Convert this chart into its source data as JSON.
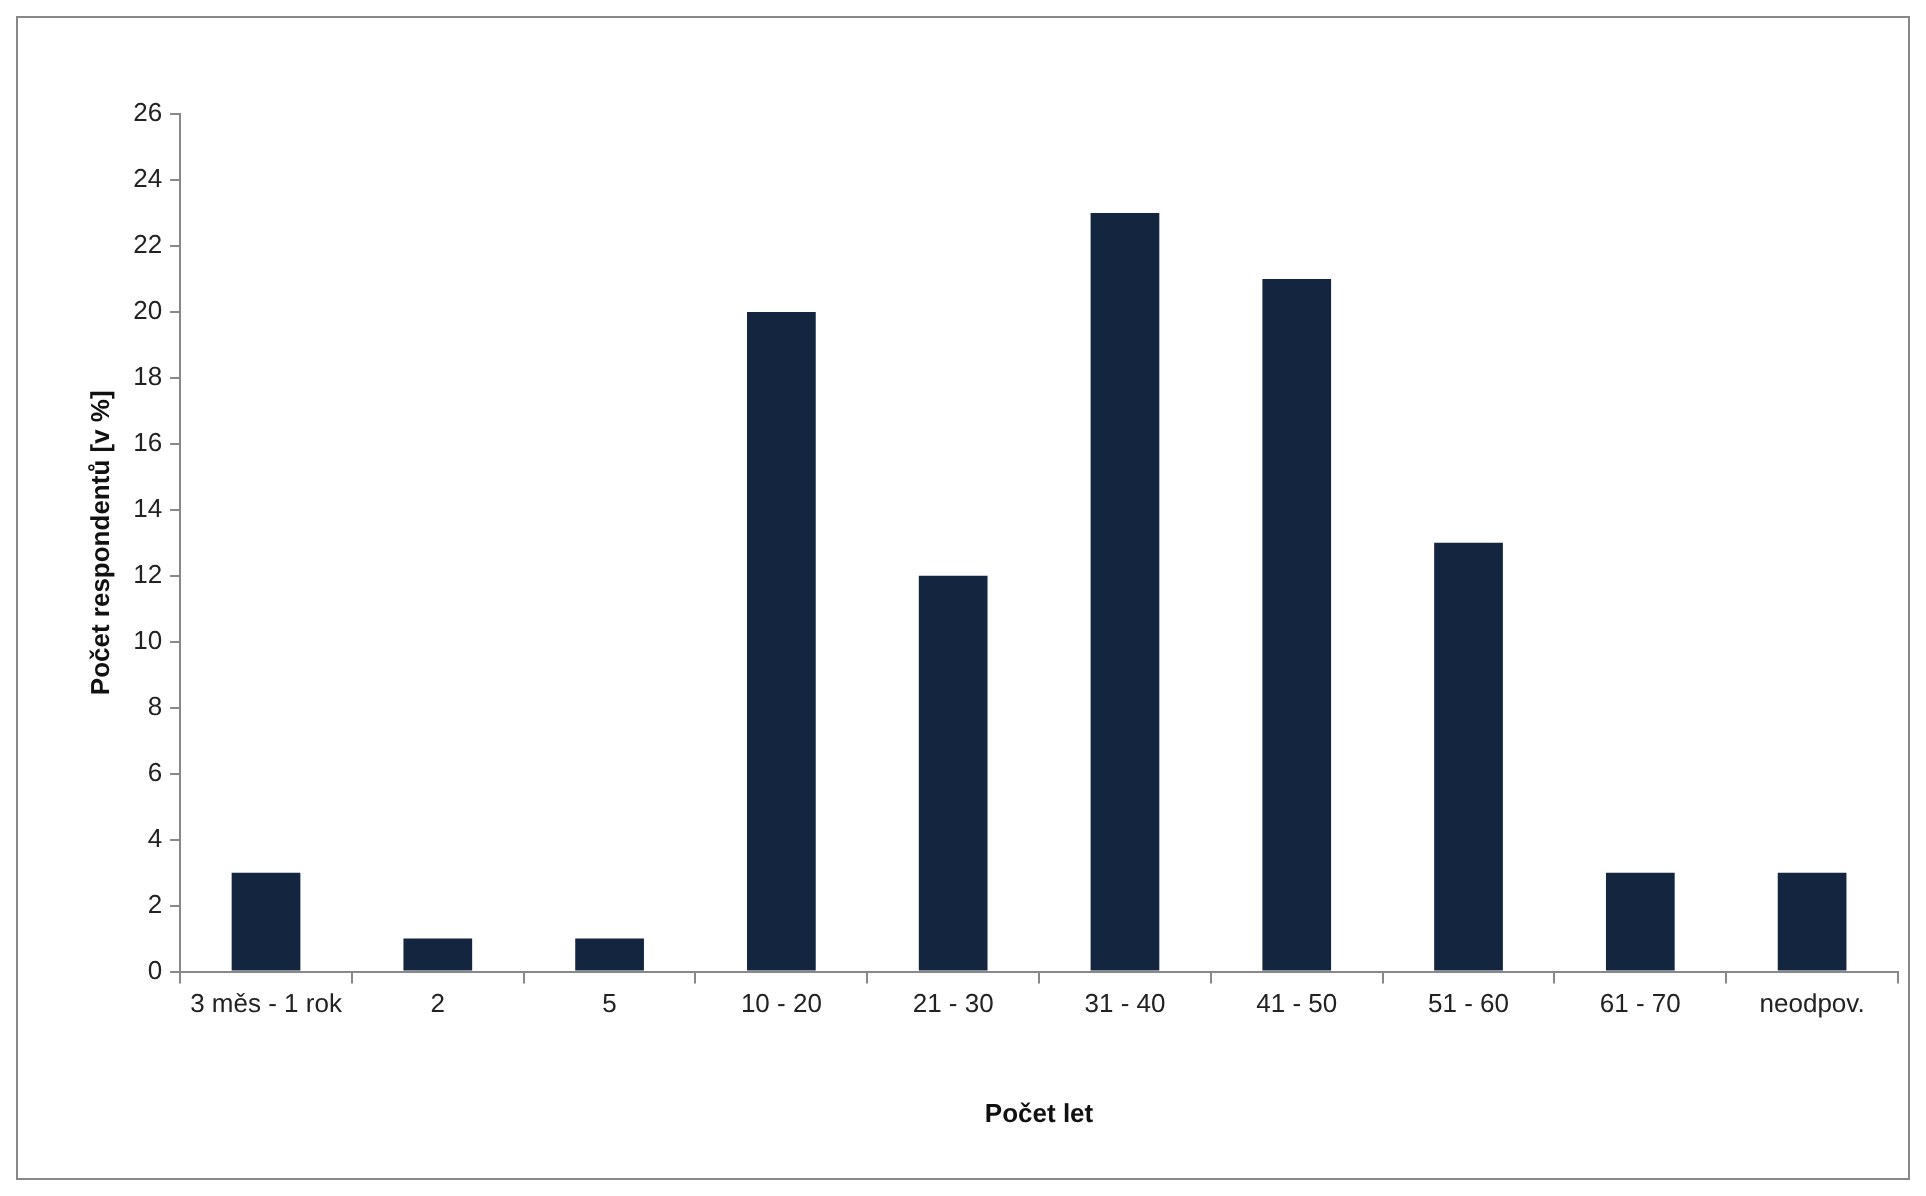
{
  "chart_data": {
    "type": "bar",
    "xlabel": "Počet let",
    "ylabel": "Počet respondentů [v %]",
    "categories": [
      "3 měs - 1 rok",
      "2",
      "5",
      "10 - 20",
      "21 - 30",
      "31 - 40",
      "41 - 50",
      "51 - 60",
      "61 - 70",
      "neodpov."
    ],
    "values": [
      3,
      1,
      1,
      20,
      12,
      23,
      21,
      13,
      3,
      3
    ],
    "color": "#13253f",
    "ylim": [
      0,
      26
    ],
    "yticks": [
      0,
      2,
      4,
      6,
      8,
      10,
      12,
      14,
      16,
      18,
      20,
      22,
      24,
      26
    ],
    "grid": false,
    "legend": false
  }
}
